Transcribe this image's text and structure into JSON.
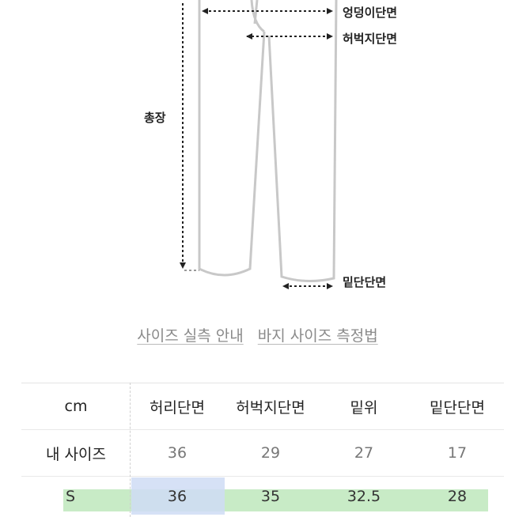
{
  "diagram": {
    "labels": {
      "hip": "엉덩이단면",
      "thigh": "허벅지단면",
      "length": "총장",
      "hem": "밑단단면"
    }
  },
  "links": {
    "size_guide": "사이즈 실측 안내",
    "pants_method": "바지 사이즈 측정법"
  },
  "table": {
    "headers": [
      "cm",
      "허리단면",
      "허벅지단면",
      "밑위",
      "밑단단면"
    ],
    "rows": [
      {
        "label": "내 사이즈",
        "values": [
          "36",
          "29",
          "27",
          "17"
        ]
      },
      {
        "label": "S",
        "values": [
          "36",
          "35",
          "32.5",
          "28"
        ]
      }
    ]
  },
  "colors": {
    "highlight_row": "#c8ebc6",
    "highlight_col": "#cfdcf5",
    "link": "#8a8a8a"
  }
}
